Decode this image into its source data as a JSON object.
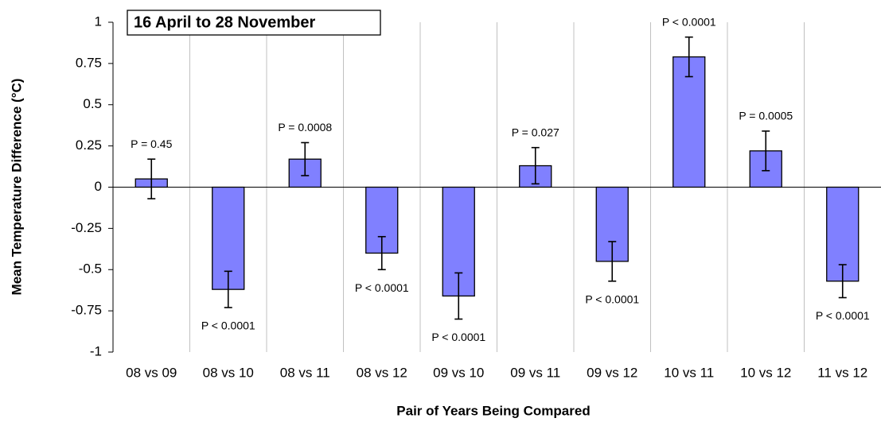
{
  "chart_data": {
    "type": "bar",
    "title": "16 April to 28 November",
    "x_label": "Pair of Years Being Compared",
    "y_label": "Mean Temperature Difference (°C)",
    "categories": [
      "08 vs 09",
      "08 vs 10",
      "08 vs 11",
      "08 vs 12",
      "09 vs 10",
      "09 vs 11",
      "09 vs 12",
      "10 vs 11",
      "10 vs 12",
      "11 vs 12"
    ],
    "values": [
      0.05,
      -0.62,
      0.17,
      -0.4,
      -0.66,
      0.13,
      -0.45,
      0.79,
      0.22,
      -0.57
    ],
    "errors": [
      0.12,
      0.11,
      0.1,
      0.1,
      0.14,
      0.11,
      0.12,
      0.12,
      0.12,
      0.1
    ],
    "annotations": [
      "P = 0.45",
      "P < 0.0001",
      "P = 0.0008",
      "P < 0.0001",
      "P < 0.0001",
      "P = 0.027",
      "P < 0.0001",
      "P < 0.0001",
      "P = 0.0005",
      "P < 0.0001"
    ],
    "color": "#8080ff",
    "ylim": [
      -1,
      1
    ],
    "yticks": [
      -1,
      -0.75,
      -0.5,
      -0.25,
      0,
      0.25,
      0.5,
      0.75,
      1
    ],
    "grid": true
  }
}
